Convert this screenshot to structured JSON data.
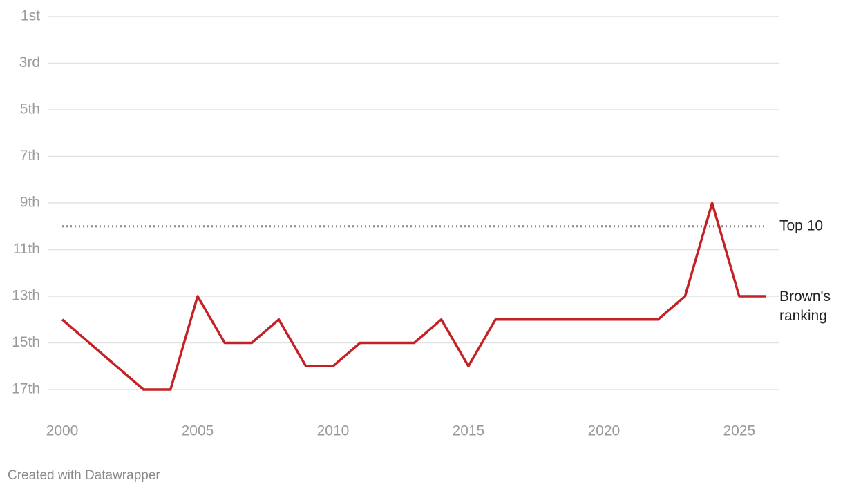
{
  "chart_data": {
    "type": "line",
    "x": [
      2000,
      2001,
      2002,
      2003,
      2004,
      2005,
      2006,
      2007,
      2008,
      2009,
      2010,
      2011,
      2012,
      2013,
      2014,
      2015,
      2016,
      2017,
      2018,
      2019,
      2020,
      2021,
      2022,
      2023,
      2024,
      2025,
      2026
    ],
    "series": [
      {
        "name": "Brown's ranking",
        "color": "#c42126",
        "values": [
          14,
          15,
          16,
          17,
          17,
          13,
          15,
          15,
          14,
          16,
          16,
          15,
          15,
          15,
          14,
          16,
          14,
          14,
          14,
          14,
          14,
          14,
          14,
          13,
          9,
          13,
          13
        ]
      }
    ],
    "reference_line": {
      "value": 10,
      "label": "Top 10",
      "color": "#888888"
    },
    "xlim": [
      2000,
      2026
    ],
    "xticks": [
      2000,
      2005,
      2010,
      2015,
      2020,
      2025
    ],
    "ylim": [
      17,
      1
    ],
    "yticks": [
      {
        "value": 1,
        "label": "1st"
      },
      {
        "value": 3,
        "label": "3rd"
      },
      {
        "value": 5,
        "label": "5th"
      },
      {
        "value": 7,
        "label": "7th"
      },
      {
        "value": 9,
        "label": "9th"
      },
      {
        "value": 11,
        "label": "11th"
      },
      {
        "value": 13,
        "label": "13th"
      },
      {
        "value": 15,
        "label": "15th"
      },
      {
        "value": 17,
        "label": "17th"
      }
    ],
    "grid": true,
    "footer": "Created with Datawrapper"
  }
}
